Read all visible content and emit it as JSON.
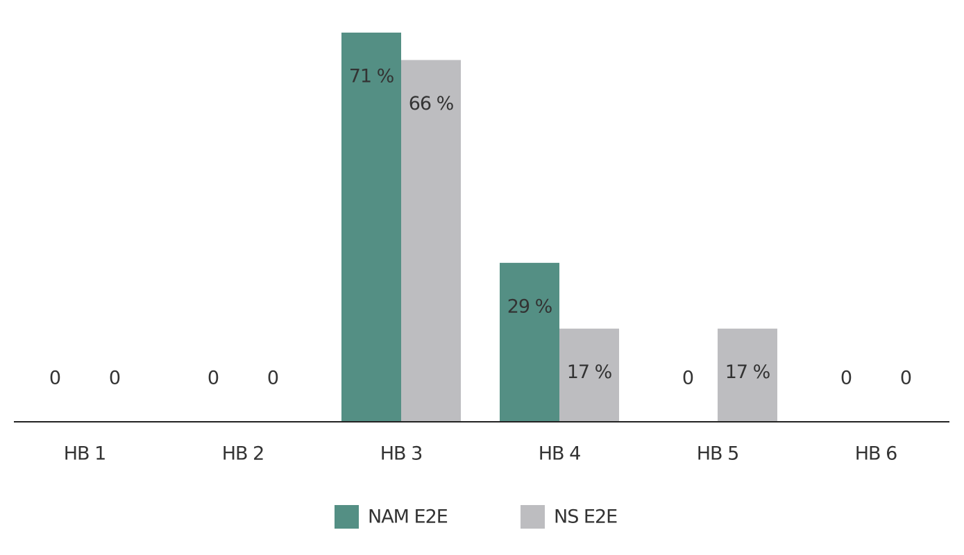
{
  "chart_data": {
    "type": "bar",
    "categories": [
      "HB 1",
      "HB 2",
      "HB 3",
      "HB 4",
      "HB 5",
      "HB 6"
    ],
    "series": [
      {
        "name": "NAM E2E",
        "color": "#548f84",
        "values": [
          0,
          0,
          71,
          29,
          0,
          0
        ],
        "value_labels": [
          "0",
          "0",
          "71 %",
          "29 %",
          "0",
          "0"
        ]
      },
      {
        "name": "NS E2E",
        "color": "#bdbdc0",
        "values": [
          0,
          0,
          66,
          17,
          17,
          0
        ],
        "value_labels": [
          "0",
          "0",
          "66 %",
          "17 %",
          "17 %",
          "0"
        ]
      }
    ],
    "legend": "bottom"
  }
}
